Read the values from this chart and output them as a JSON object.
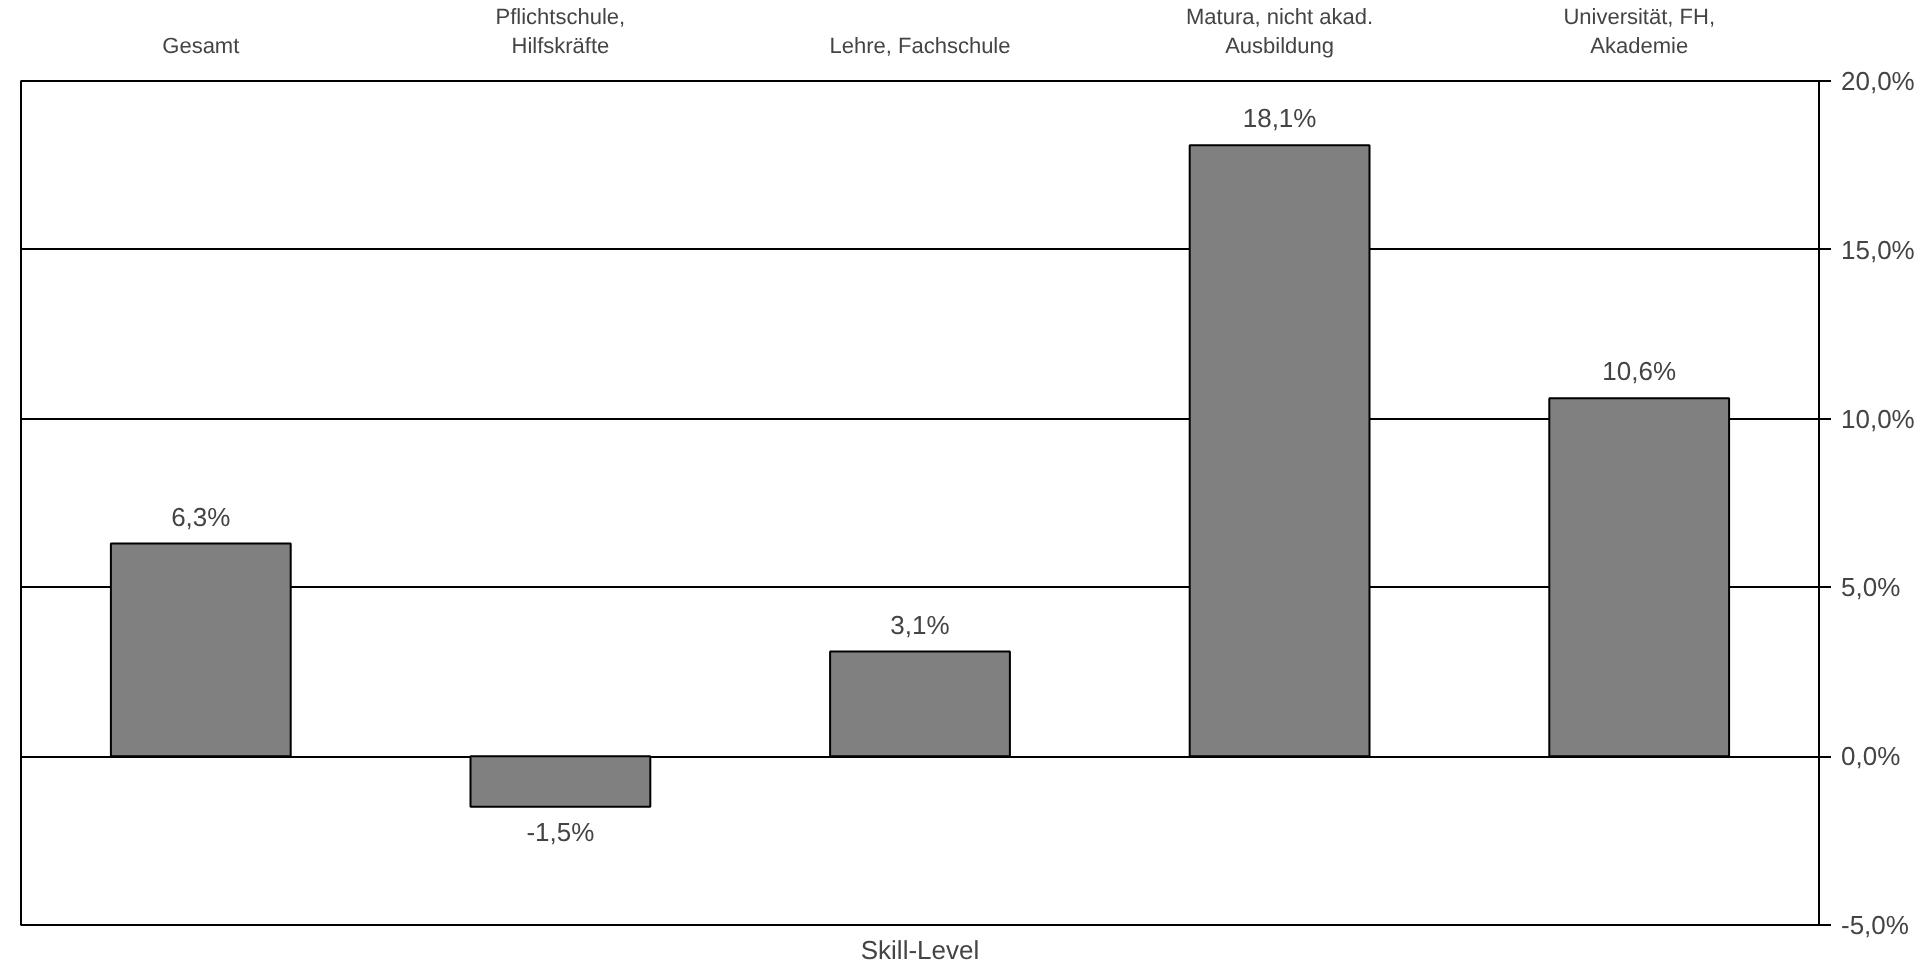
{
  "chart_data": {
    "type": "bar",
    "xlabel": "Skill-Level",
    "categories": [
      "Gesamt",
      "Pflichtschule,\nHilfskräfte",
      "Lehre, Fachschule",
      "Matura, nicht akad.\nAusbildung",
      "Universität, FH,\nAkademie"
    ],
    "values": [
      6.3,
      -1.5,
      3.1,
      18.1,
      10.6
    ],
    "value_labels": [
      "6,3%",
      "-1,5%",
      "3,1%",
      "18,1%",
      "10,6%"
    ],
    "color": "#808080",
    "ylim": [
      -5,
      20
    ],
    "yticks": [
      {
        "value": -5,
        "label": "-5,0%"
      },
      {
        "value": 0,
        "label": "0,0%"
      },
      {
        "value": 5,
        "label": "5,0%"
      },
      {
        "value": 10,
        "label": "10,0%"
      },
      {
        "value": 15,
        "label": "15,0%"
      },
      {
        "value": 20,
        "label": "20,0%"
      }
    ],
    "grid": "y"
  }
}
